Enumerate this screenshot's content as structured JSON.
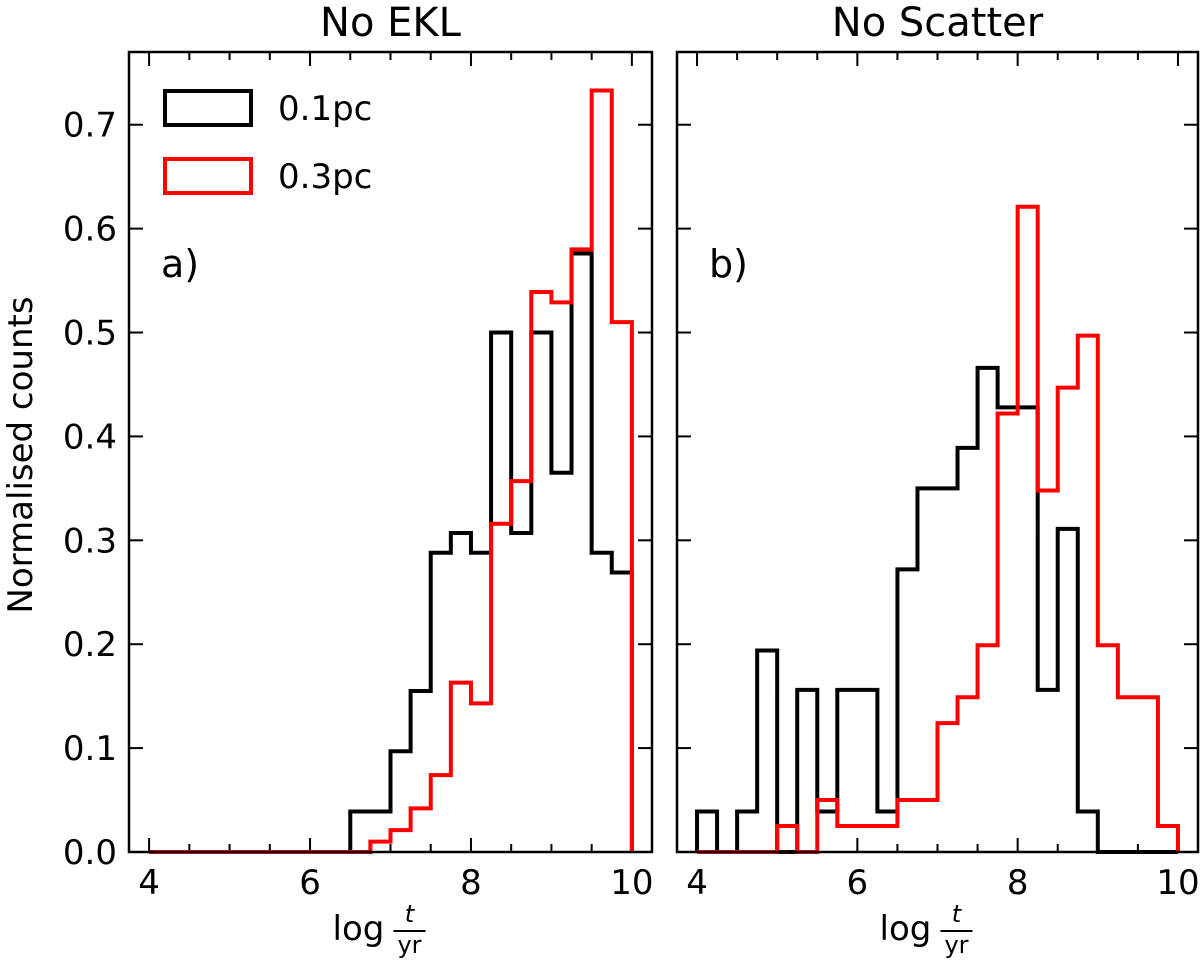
{
  "figure": {
    "ylabel": "Normalised counts"
  },
  "chart_data": [
    {
      "type": "histogram",
      "title": "No EKL",
      "panel_label": "a)",
      "xlabel": "log t/yr",
      "xlabel_parts": {
        "prefix": "log",
        "numerator": "t",
        "denominator": "yr"
      },
      "xlim": [
        3.75,
        10.25
      ],
      "ylim": [
        0,
        0.77
      ],
      "xticks": [
        4,
        6,
        8,
        10
      ],
      "yticks": [
        0.0,
        0.1,
        0.2,
        0.3,
        0.4,
        0.5,
        0.6,
        0.7
      ],
      "ytick_labels": [
        "0.0",
        "0.1",
        "0.2",
        "0.3",
        "0.4",
        "0.5",
        "0.6",
        "0.7"
      ],
      "bin_edges": [
        4.0,
        4.25,
        4.5,
        4.75,
        5.0,
        5.25,
        5.5,
        5.75,
        6.0,
        6.25,
        6.5,
        6.75,
        7.0,
        7.25,
        7.5,
        7.75,
        8.0,
        8.25,
        8.5,
        8.75,
        9.0,
        9.25,
        9.5,
        9.75,
        10.0
      ],
      "legend": {
        "position": "top-left",
        "entries": [
          "0.1pc",
          "0.3pc"
        ]
      },
      "series": [
        {
          "name": "0.1pc",
          "color": "#000000",
          "values": [
            0,
            0,
            0,
            0,
            0,
            0,
            0,
            0,
            0,
            0,
            0.039,
            0.039,
            0.097,
            0.155,
            0.288,
            0.307,
            0.288,
            0.5,
            0.307,
            0.5,
            0.365,
            0.576,
            0.288,
            0.269
          ]
        },
        {
          "name": "0.3pc",
          "color": "#ff0000",
          "values": [
            0,
            0,
            0,
            0,
            0,
            0,
            0,
            0,
            0,
            0,
            0,
            0.01,
            0.021,
            0.042,
            0.074,
            0.163,
            0.143,
            0.316,
            0.357,
            0.539,
            0.529,
            0.58,
            0.733,
            0.51
          ]
        }
      ]
    },
    {
      "type": "histogram",
      "title": "No Scatter",
      "panel_label": "b)",
      "xlabel": "log t/yr",
      "xlabel_parts": {
        "prefix": "log",
        "numerator": "t",
        "denominator": "yr"
      },
      "xlim": [
        3.75,
        10.25
      ],
      "ylim": [
        0,
        0.77
      ],
      "xticks": [
        4,
        6,
        8,
        10
      ],
      "yticks": [
        0.0,
        0.1,
        0.2,
        0.3,
        0.4,
        0.5,
        0.6,
        0.7
      ],
      "ytick_labels": [],
      "bin_edges": [
        4.0,
        4.25,
        4.5,
        4.75,
        5.0,
        5.25,
        5.5,
        5.75,
        6.0,
        6.25,
        6.5,
        6.75,
        7.0,
        7.25,
        7.5,
        7.75,
        8.0,
        8.25,
        8.5,
        8.75,
        9.0,
        9.25,
        9.5,
        9.75,
        10.0
      ],
      "legend": null,
      "series": [
        {
          "name": "0.1pc",
          "color": "#000000",
          "values": [
            0.039,
            0,
            0.039,
            0.194,
            0,
            0.156,
            0.039,
            0.156,
            0.156,
            0.039,
            0.272,
            0.35,
            0.35,
            0.389,
            0.466,
            0.428,
            0.428,
            0.156,
            0.311,
            0.039,
            0,
            0,
            0,
            0
          ]
        },
        {
          "name": "0.3pc",
          "color": "#ff0000",
          "values": [
            0,
            0,
            0,
            0,
            0.025,
            0,
            0.05,
            0.025,
            0.025,
            0.025,
            0.05,
            0.05,
            0.124,
            0.149,
            0.199,
            0.422,
            0.621,
            0.348,
            0.447,
            0.497,
            0.199,
            0.149,
            0.149,
            0.025
          ]
        }
      ]
    }
  ]
}
